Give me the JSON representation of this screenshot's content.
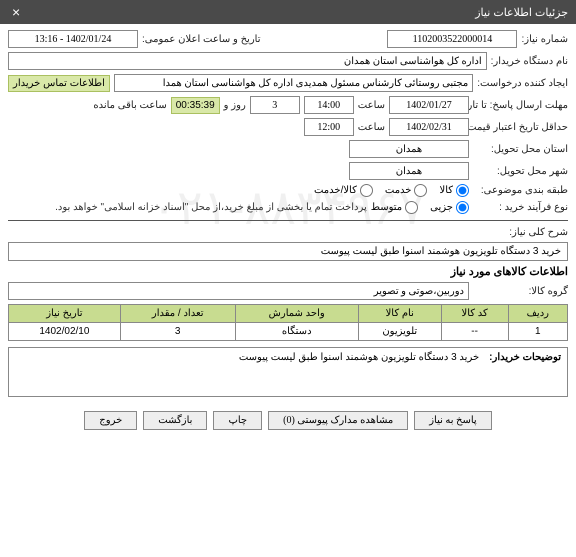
{
  "window": {
    "title": "جزئیات اطلاعات نیاز"
  },
  "labels": {
    "req_no": "شماره نیاز:",
    "announce_dt": "تاریخ و ساعت اعلان عمومی:",
    "org": "نام دستگاه خریدار:",
    "requester": "ایجاد کننده درخواست:",
    "contact_info": "اطلاعات تماس خریدار",
    "deadline": "مهلت ارسال پاسخ: تا تاریخ:",
    "hour": "ساعت",
    "day_and": "روز و",
    "remaining": "ساعت باقی مانده",
    "min_valid": "حداقل تاریخ اعتبار قیمت: تا تاریخ:",
    "province": "استان محل تحویل:",
    "city": "شهر محل تحویل:",
    "category": "طبقه بندی موضوعی:",
    "goods": "کالا",
    "service": "خدمت",
    "goods_service": "کالا/خدمت",
    "buy_type": "نوع فرآیند خرید :",
    "partial": "جزیی",
    "medium": "متوسط",
    "note": "پرداخت تمام یا بخشی از مبلغ خرید،از محل \"اسناد خزانه اسلامی\" خواهد بود.",
    "summary": "شرح کلی نیاز:",
    "items_title": "اطلاعات کالاهای مورد نیاز",
    "group": "گروه کالا:",
    "buyer_desc": "توضیحات خریدار:"
  },
  "vals": {
    "req_no": "1102003522000014",
    "announce_dt": "1402/01/24 - 13:16",
    "org": "اداره کل هواشناسی استان همدان",
    "requester": "مجتبی روستائی کارشناس مسئول همدیدی اداره کل هواشناسی استان همدا",
    "deadline_date": "1402/01/27",
    "deadline_time": "14:00",
    "days_left": "3",
    "time_left": "00:35:39",
    "valid_date": "1402/02/31",
    "valid_time": "12:00",
    "province": "همدان",
    "city": "همدان",
    "summary": "خرید 3 دستگاه تلویزیون هوشمند اسنوا طبق لیست پیوست",
    "group": "دوربین،صوتی و تصویر",
    "buyer_desc": "خرید 3 دستگاه تلویزیون هوشمند اسنوا طبق لیست پیوست"
  },
  "table": {
    "headers": [
      "ردیف",
      "کد کالا",
      "نام کالا",
      "واحد شمارش",
      "تعداد / مقدار",
      "تاریخ نیاز"
    ],
    "rows": [
      [
        "1",
        "--",
        "تلویزیون",
        "دستگاه",
        "3",
        "1402/02/10"
      ]
    ]
  },
  "buttons": {
    "respond": "پاسخ به نیاز",
    "attachments": "مشاهده مدارک پیوستی (0)",
    "print": "چاپ",
    "back": "بازگشت",
    "exit": "خروج"
  },
  "watermark": "۰۲۱-۸۸۳۴۹۶۷"
}
